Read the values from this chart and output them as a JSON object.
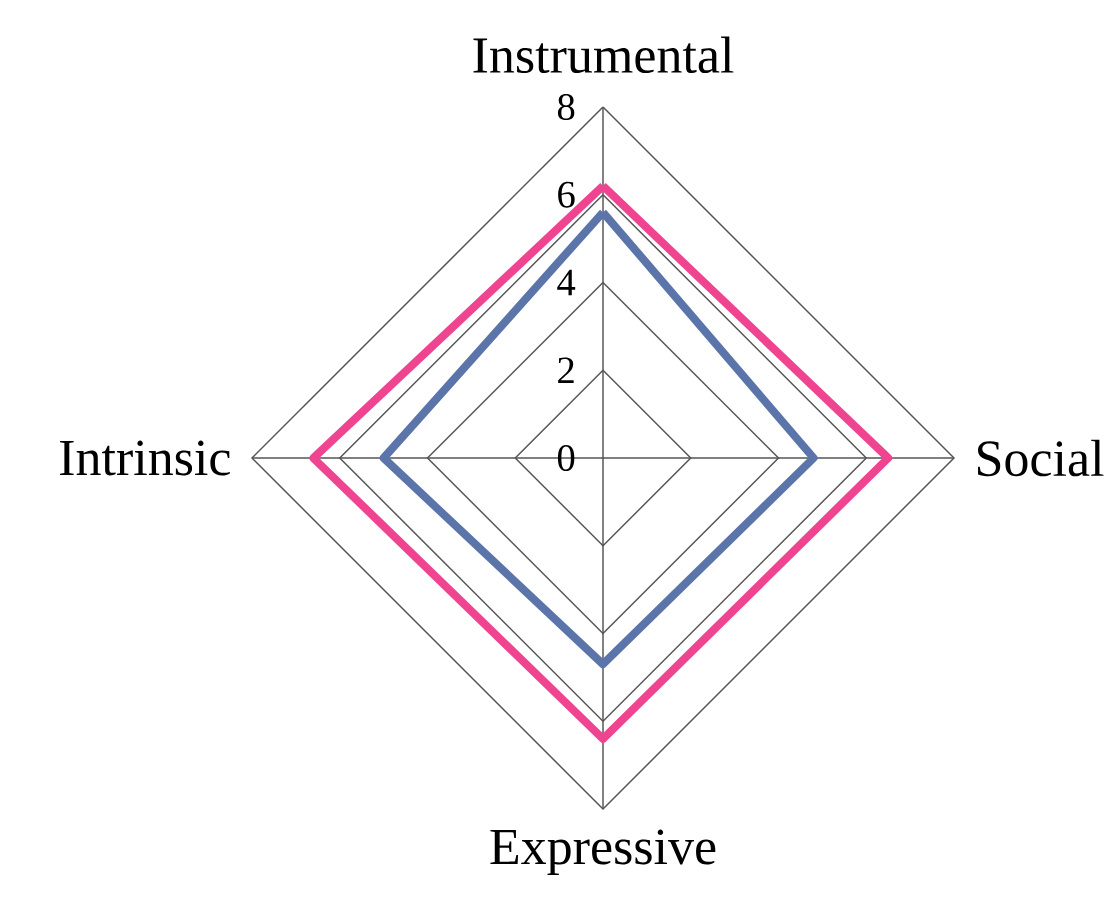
{
  "chart_data": {
    "type": "radar",
    "categories": [
      "Instrumental",
      "Social",
      "Expressive",
      "Intrinsic"
    ],
    "series": [
      {
        "color": "#ef4590",
        "values": [
          6.2,
          6.5,
          6.4,
          6.6
        ]
      },
      {
        "color": "#5b75aa",
        "values": [
          5.6,
          4.8,
          4.7,
          5.0
        ]
      }
    ],
    "ylim": [
      0,
      8
    ],
    "yticks": [
      0,
      2,
      4,
      6,
      8
    ],
    "grid": true
  }
}
